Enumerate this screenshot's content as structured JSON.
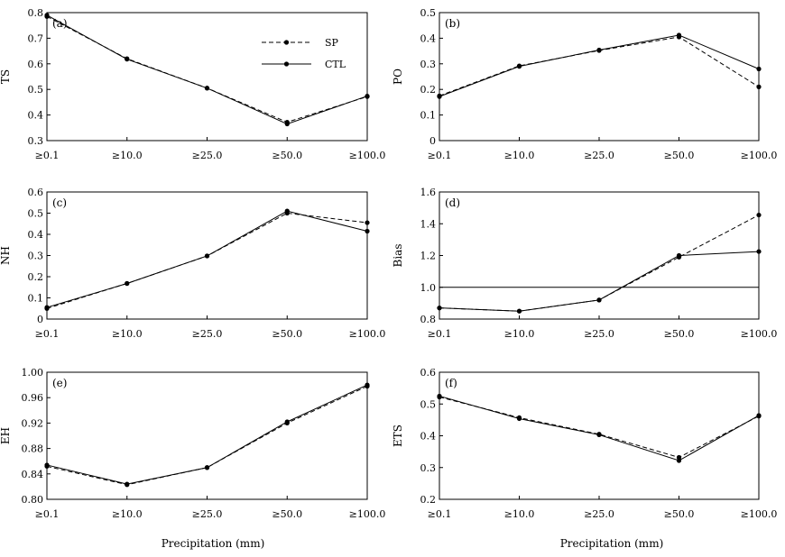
{
  "categories": [
    "≥0.1",
    "≥10.0",
    "≥25.0",
    "≥50.0",
    "≥100.0"
  ],
  "xlabel": "Precipitation (mm)",
  "legend": [
    {
      "name": "SP",
      "style": "dashed"
    },
    {
      "name": "CTL",
      "style": "solid"
    }
  ],
  "chart_data": [
    {
      "type": "line",
      "panel": "(a)",
      "ylabel": "TS",
      "ylim": [
        0.3,
        0.8
      ],
      "yticks": [
        "0.3",
        "0.4",
        "0.5",
        "0.6",
        "0.7",
        "0.8"
      ],
      "series": [
        {
          "name": "SP",
          "values": [
            0.785,
            0.62,
            0.505,
            0.372,
            0.472
          ]
        },
        {
          "name": "CTL",
          "values": [
            0.79,
            0.618,
            0.505,
            0.365,
            0.474
          ]
        }
      ]
    },
    {
      "type": "line",
      "panel": "(b)",
      "ylabel": "PO",
      "ylim": [
        0,
        0.5
      ],
      "yticks": [
        "0",
        "0.1",
        "0.2",
        "0.3",
        "0.4",
        "0.5"
      ],
      "series": [
        {
          "name": "SP",
          "values": [
            0.175,
            0.292,
            0.352,
            0.405,
            0.21
          ]
        },
        {
          "name": "CTL",
          "values": [
            0.172,
            0.29,
            0.354,
            0.412,
            0.28
          ]
        }
      ]
    },
    {
      "type": "line",
      "panel": "(c)",
      "ylabel": "NH",
      "ylim": [
        0,
        0.6
      ],
      "yticks": [
        "0",
        "0.1",
        "0.2",
        "0.3",
        "0.4",
        "0.5",
        "0.6"
      ],
      "series": [
        {
          "name": "SP",
          "values": [
            0.05,
            0.168,
            0.298,
            0.5,
            0.455
          ]
        },
        {
          "name": "CTL",
          "values": [
            0.055,
            0.168,
            0.298,
            0.51,
            0.415
          ]
        }
      ]
    },
    {
      "type": "line",
      "panel": "(d)",
      "ylabel": "Bias",
      "ylim": [
        0.8,
        1.6
      ],
      "yticks": [
        "0.8",
        "1.0",
        "1.2",
        "1.4",
        "1.6"
      ],
      "reference_line": 1.0,
      "series": [
        {
          "name": "SP",
          "values": [
            0.87,
            0.85,
            0.92,
            1.19,
            1.455
          ]
        },
        {
          "name": "CTL",
          "values": [
            0.87,
            0.85,
            0.92,
            1.2,
            1.225
          ]
        }
      ]
    },
    {
      "type": "line",
      "panel": "(e)",
      "ylabel": "EH",
      "ylim": [
        0.8,
        1.0
      ],
      "yticks": [
        "0.80",
        "0.84",
        "0.88",
        "0.92",
        "0.96",
        "1.00"
      ],
      "series": [
        {
          "name": "SP",
          "values": [
            0.852,
            0.823,
            0.85,
            0.92,
            0.978
          ]
        },
        {
          "name": "CTL",
          "values": [
            0.854,
            0.824,
            0.85,
            0.922,
            0.98
          ]
        }
      ]
    },
    {
      "type": "line",
      "panel": "(f)",
      "ylabel": "ETS",
      "ylim": [
        0.2,
        0.6
      ],
      "yticks": [
        "0.2",
        "0.3",
        "0.4",
        "0.5",
        "0.6"
      ],
      "series": [
        {
          "name": "SP",
          "values": [
            0.522,
            0.457,
            0.405,
            0.332,
            0.462
          ]
        },
        {
          "name": "CTL",
          "values": [
            0.525,
            0.454,
            0.403,
            0.322,
            0.464
          ]
        }
      ]
    }
  ]
}
